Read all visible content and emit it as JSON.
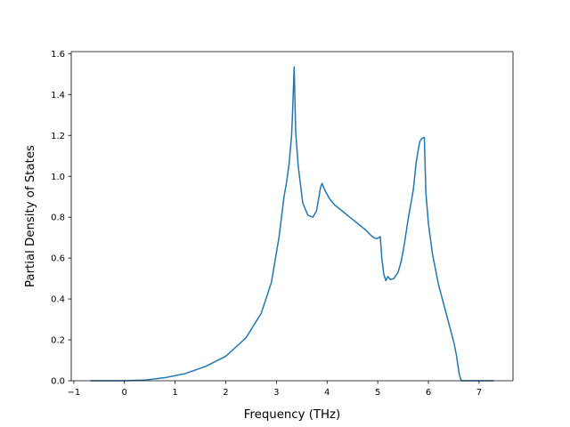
{
  "chart_data": {
    "type": "line",
    "title": "",
    "xlabel": "Frequency (THz)",
    "ylabel": "Partial Density of States",
    "xlim": [
      -1.05,
      7.67
    ],
    "ylim": [
      0.0,
      1.61
    ],
    "xticks": [
      -1,
      0,
      1,
      2,
      3,
      4,
      5,
      6,
      7
    ],
    "yticks": [
      0.0,
      0.2,
      0.4,
      0.6,
      0.8,
      1.0,
      1.2,
      1.4,
      1.6
    ],
    "xtick_labels": [
      "−1",
      "0",
      "1",
      "2",
      "3",
      "4",
      "5",
      "6",
      "7"
    ],
    "ytick_labels": [
      "0.0",
      "0.2",
      "0.4",
      "0.6",
      "0.8",
      "1.0",
      "1.2",
      "1.4",
      "1.6"
    ],
    "grid": false,
    "line_color": "#1f77b4",
    "series": [
      {
        "x": [
          -0.66,
          0.0,
          0.4,
          0.8,
          1.2,
          1.6,
          2.0,
          2.4,
          2.7,
          2.9,
          3.05,
          3.15,
          3.2,
          3.25,
          3.3,
          3.32,
          3.35,
          3.38,
          3.43,
          3.52,
          3.62,
          3.72,
          3.79,
          3.84,
          3.87,
          3.9,
          3.96,
          4.05,
          4.15,
          4.3,
          4.45,
          4.6,
          4.75,
          4.85,
          4.92,
          4.98,
          5.02,
          5.05,
          5.08,
          5.12,
          5.16,
          5.2,
          5.25,
          5.32,
          5.4,
          5.46,
          5.52,
          5.6,
          5.7,
          5.76,
          5.8,
          5.83,
          5.87,
          5.92,
          5.95,
          6.0,
          6.08,
          6.2,
          6.35,
          6.5,
          6.55,
          6.61,
          6.65,
          7.0,
          7.28
        ],
        "y": [
          0.0,
          0.0,
          0.003,
          0.015,
          0.035,
          0.07,
          0.12,
          0.21,
          0.33,
          0.48,
          0.7,
          0.9,
          0.97,
          1.06,
          1.2,
          1.32,
          1.535,
          1.22,
          1.05,
          0.87,
          0.81,
          0.8,
          0.83,
          0.9,
          0.945,
          0.965,
          0.93,
          0.89,
          0.86,
          0.83,
          0.8,
          0.77,
          0.74,
          0.715,
          0.7,
          0.695,
          0.7,
          0.705,
          0.6,
          0.52,
          0.49,
          0.51,
          0.495,
          0.5,
          0.53,
          0.58,
          0.66,
          0.79,
          0.93,
          1.07,
          1.13,
          1.17,
          1.185,
          1.19,
          0.92,
          0.77,
          0.62,
          0.47,
          0.33,
          0.19,
          0.13,
          0.03,
          0.0,
          0.0,
          0.0
        ]
      }
    ]
  }
}
